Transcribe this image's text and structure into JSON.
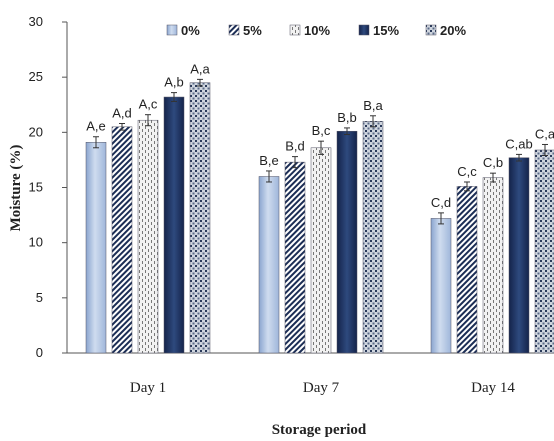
{
  "chart_data": {
    "type": "bar",
    "categories": [
      "Day 1",
      "Day 7",
      "Day 14"
    ],
    "series": [
      {
        "name": "0%",
        "values": [
          19.1,
          16.0,
          12.2
        ],
        "errors": [
          0.5,
          0.5,
          0.5
        ],
        "labels": [
          "A,e",
          "B,e",
          "C,d"
        ]
      },
      {
        "name": "5%",
        "values": [
          20.5,
          17.3,
          15.1
        ],
        "errors": [
          0.3,
          0.5,
          0.4
        ],
        "labels": [
          "A,d",
          "B,d",
          "C,c"
        ]
      },
      {
        "name": "10%",
        "values": [
          21.1,
          18.6,
          15.9
        ],
        "errors": [
          0.5,
          0.6,
          0.4
        ],
        "labels": [
          "A,c",
          "B,c",
          "C,b"
        ]
      },
      {
        "name": "15%",
        "values": [
          23.2,
          20.1,
          17.7
        ],
        "errors": [
          0.4,
          0.3,
          0.3
        ],
        "labels": [
          "A,b",
          "B,b",
          "C,ab"
        ]
      },
      {
        "name": "20%",
        "values": [
          24.5,
          21.0,
          18.4
        ],
        "errors": [
          0.3,
          0.5,
          0.5
        ],
        "labels": [
          "A,a",
          "B,a",
          "C,a"
        ]
      }
    ],
    "xlabel": "Storage period",
    "ylabel": "Moisture (%)",
    "ylim": [
      0,
      30
    ],
    "yticks": [
      0,
      5,
      10,
      15,
      20,
      25,
      30
    ],
    "grid": false,
    "legend": "top",
    "colors": {
      "light_blue": "#a9bede",
      "dark_navy": "#1b2d55",
      "axis": "#555555"
    }
  }
}
